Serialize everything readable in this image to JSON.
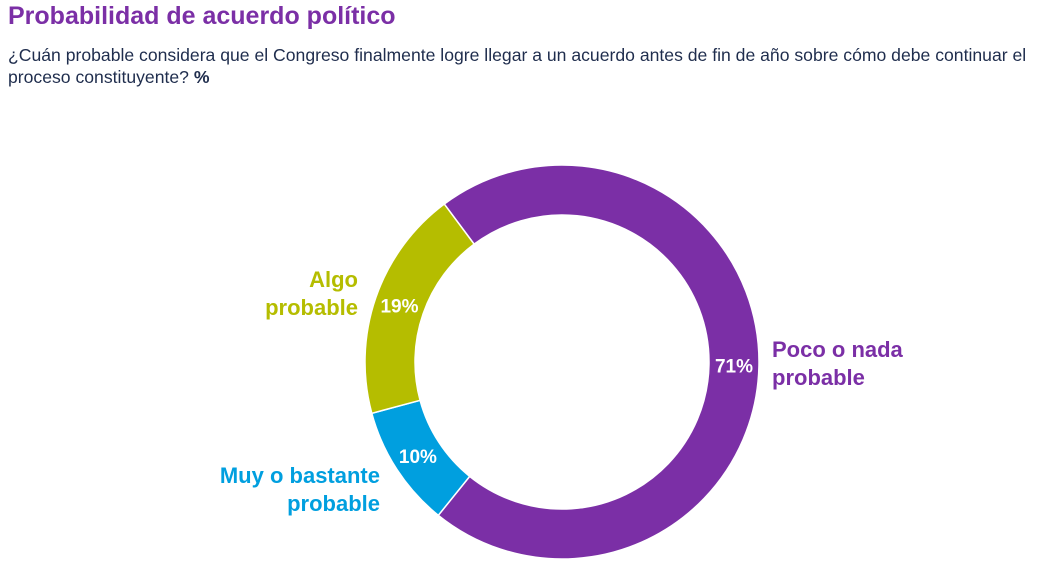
{
  "title": "Probabilidad de acuerdo político",
  "subtitle": "¿Cuán probable considera que el Congreso finalmente logre llegar a un acuerdo antes de fin de año sobre cómo debe continuar el proceso constituyente?",
  "subtitle_unit": "%",
  "chart_data": {
    "type": "pie",
    "donut": true,
    "title": "Probabilidad de acuerdo político",
    "unit": "%",
    "slices": [
      {
        "label": "Poco o nada probable",
        "value": 71,
        "data_label": "71%",
        "color": "#7B2FA6"
      },
      {
        "label": "Muy o bastante probable",
        "value": 10,
        "data_label": "10%",
        "color": "#009FDF"
      },
      {
        "label": "Algo probable",
        "value": 19,
        "data_label": "19%",
        "color": "#B5BD00"
      }
    ]
  }
}
